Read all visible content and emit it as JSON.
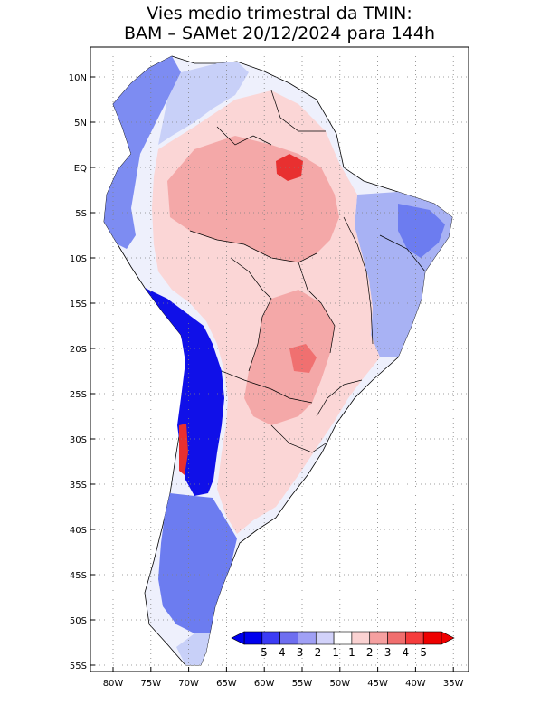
{
  "title": {
    "line1": "Vies medio trimestral da TMIN:",
    "line2": "BAM – SAMet 20/12/2024  para 144h"
  },
  "map": {
    "lat_labels": [
      "10N",
      "5N",
      "EQ",
      "5S",
      "10S",
      "15S",
      "20S",
      "25S",
      "30S",
      "35S",
      "40S",
      "45S",
      "50S",
      "55S"
    ],
    "lon_labels": [
      "80W",
      "75W",
      "70W",
      "65W",
      "60W",
      "55W",
      "50W",
      "45W",
      "40W",
      "35W"
    ],
    "grid": "dotted"
  },
  "colorbar": {
    "labels": [
      "-5",
      "-4",
      "-3",
      "-2",
      "-1",
      "1",
      "2",
      "3",
      "4",
      "5"
    ],
    "colors": [
      "#0000ee",
      "#3c3cf5",
      "#6e6ef0",
      "#a0a0f5",
      "#d2d2fa",
      "#ffffff",
      "#fad2d2",
      "#f5a0a0",
      "#f06e6e",
      "#f53c3c",
      "#ee0000"
    ]
  },
  "legend_colors": {
    "strong_cold": "#1010e8",
    "cold": "#6c7cf0",
    "mild_cold": "#c8d0f8",
    "neutral": "#ffffff",
    "mild_warm": "#fbd6d6",
    "warm": "#f4a8a8",
    "strong_warm": "#f07070",
    "hot": "#e83030"
  }
}
